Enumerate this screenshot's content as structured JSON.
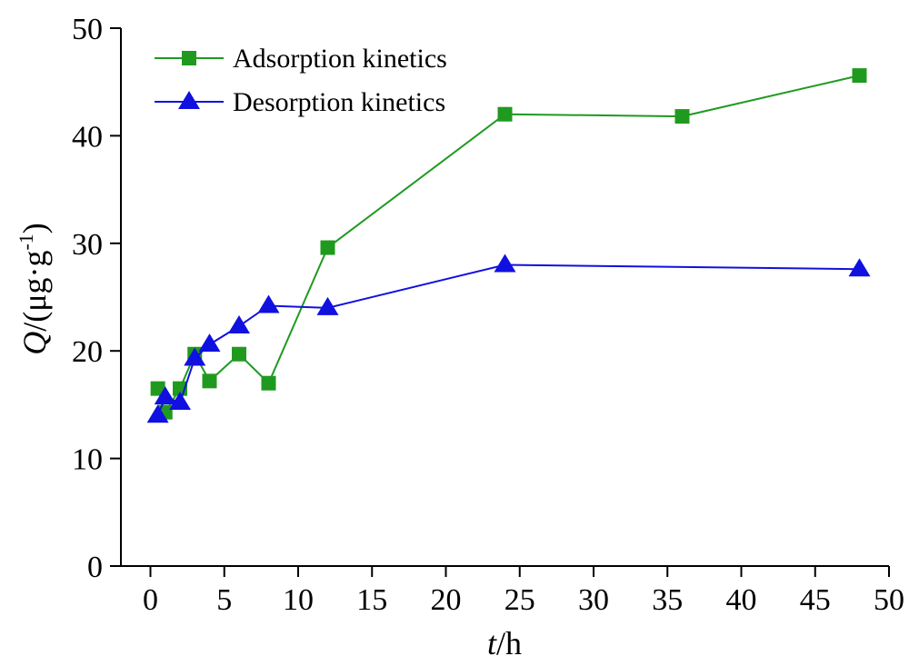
{
  "chart_data": {
    "type": "line",
    "xlabel": {
      "var": "t",
      "unit": "/h"
    },
    "ylabel": {
      "var": "Q",
      "unit_prefix": "/(μg·g",
      "unit_exp": "-1",
      "unit_suffix": ")"
    },
    "xlim": [
      -2,
      50
    ],
    "ylim": [
      0,
      50
    ],
    "xticks": [
      0,
      5,
      10,
      15,
      20,
      25,
      30,
      35,
      40,
      45,
      50
    ],
    "yticks": [
      0,
      10,
      20,
      30,
      40,
      50
    ],
    "legend_position": "top-left",
    "grid": false,
    "series": [
      {
        "name": "Adsorption kinetics",
        "color": "#1f9a1f",
        "marker": "square",
        "points": [
          [
            0.5,
            16.5
          ],
          [
            1,
            14.3
          ],
          [
            2,
            16.5
          ],
          [
            3,
            19.7
          ],
          [
            4,
            17.2
          ],
          [
            6,
            19.7
          ],
          [
            8,
            17.0
          ],
          [
            12,
            29.6
          ],
          [
            24,
            42.0
          ],
          [
            36,
            41.8
          ],
          [
            48,
            45.6
          ]
        ]
      },
      {
        "name": "Desorption kinetics",
        "color": "#1010e0",
        "marker": "triangle",
        "points": [
          [
            0.5,
            14.0
          ],
          [
            1,
            15.7
          ],
          [
            2,
            15.2
          ],
          [
            3,
            19.3
          ],
          [
            4,
            20.6
          ],
          [
            6,
            22.3
          ],
          [
            8,
            24.2
          ],
          [
            12,
            24.0
          ],
          [
            24,
            28.0
          ],
          [
            48,
            27.6
          ]
        ]
      }
    ]
  }
}
